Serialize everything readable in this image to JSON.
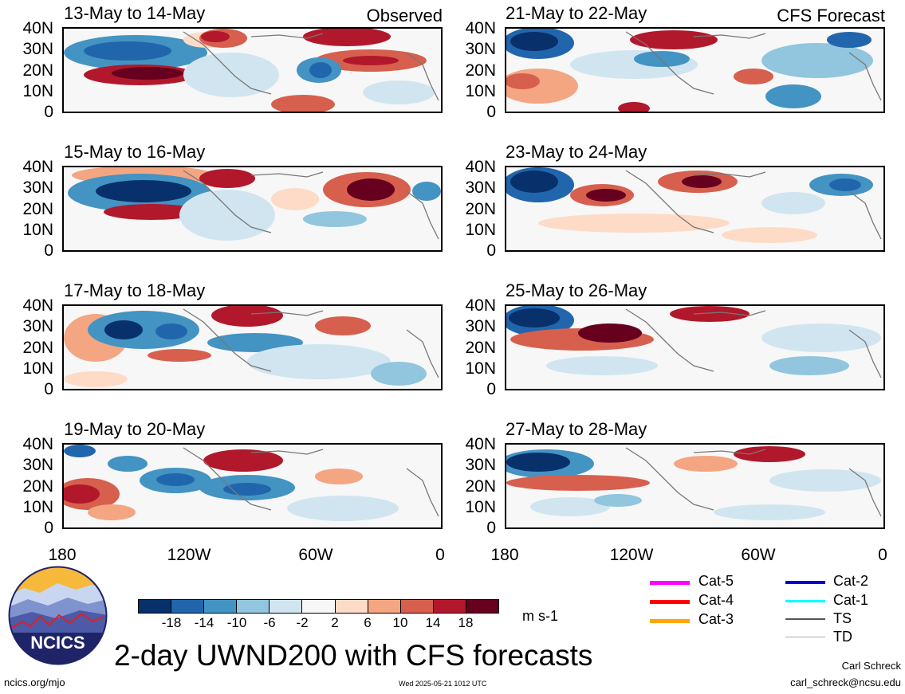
{
  "header": {
    "observed_label": "Observed",
    "forecast_label": "CFS Forecast"
  },
  "panels": {
    "left": [
      {
        "title": "13-May to 14-May"
      },
      {
        "title": "15-May to 16-May"
      },
      {
        "title": "17-May to 18-May"
      },
      {
        "title": "19-May to 20-May"
      }
    ],
    "right": [
      {
        "title": "21-May to 22-May"
      },
      {
        "title": "23-May to 24-May"
      },
      {
        "title": "25-May to 26-May"
      },
      {
        "title": "27-May to 28-May"
      }
    ]
  },
  "axes": {
    "y_ticks": [
      "40N",
      "30N",
      "20N",
      "10N",
      "0"
    ],
    "x_ticks": [
      "180",
      "120W",
      "60W",
      "0"
    ]
  },
  "colorbar": {
    "labels": [
      "-18",
      "-14",
      "-10",
      "-6",
      "-2",
      "2",
      "6",
      "10",
      "14",
      "18"
    ],
    "colors": [
      "#08306b",
      "#2166ac",
      "#4393c3",
      "#92c5de",
      "#d1e5f0",
      "#f7f7f7",
      "#fddbc7",
      "#f4a582",
      "#d6604d",
      "#b2182b",
      "#67001f"
    ],
    "units": "m s-1"
  },
  "legend": {
    "items": [
      {
        "label": "Cat-5",
        "color": "#ff00ff"
      },
      {
        "label": "Cat-4",
        "color": "#ff0000"
      },
      {
        "label": "Cat-3",
        "color": "#ffa500"
      },
      {
        "label": "Cat-2",
        "color": "#0000cd"
      },
      {
        "label": "Cat-1",
        "color": "#00ffff"
      },
      {
        "label": "TS",
        "color": "#555555"
      },
      {
        "label": "TD",
        "color": "#aaaaaa"
      }
    ]
  },
  "footer": {
    "title": "2-day UWND200 with CFS forecasts",
    "logo_text": "NCICS",
    "site": "ncics.org/mjo",
    "timestamp": "Wed 2025-05-21 1012 UTC",
    "author": "Carl Schreck",
    "email": "carl_schreck@ncsu.edu"
  }
}
